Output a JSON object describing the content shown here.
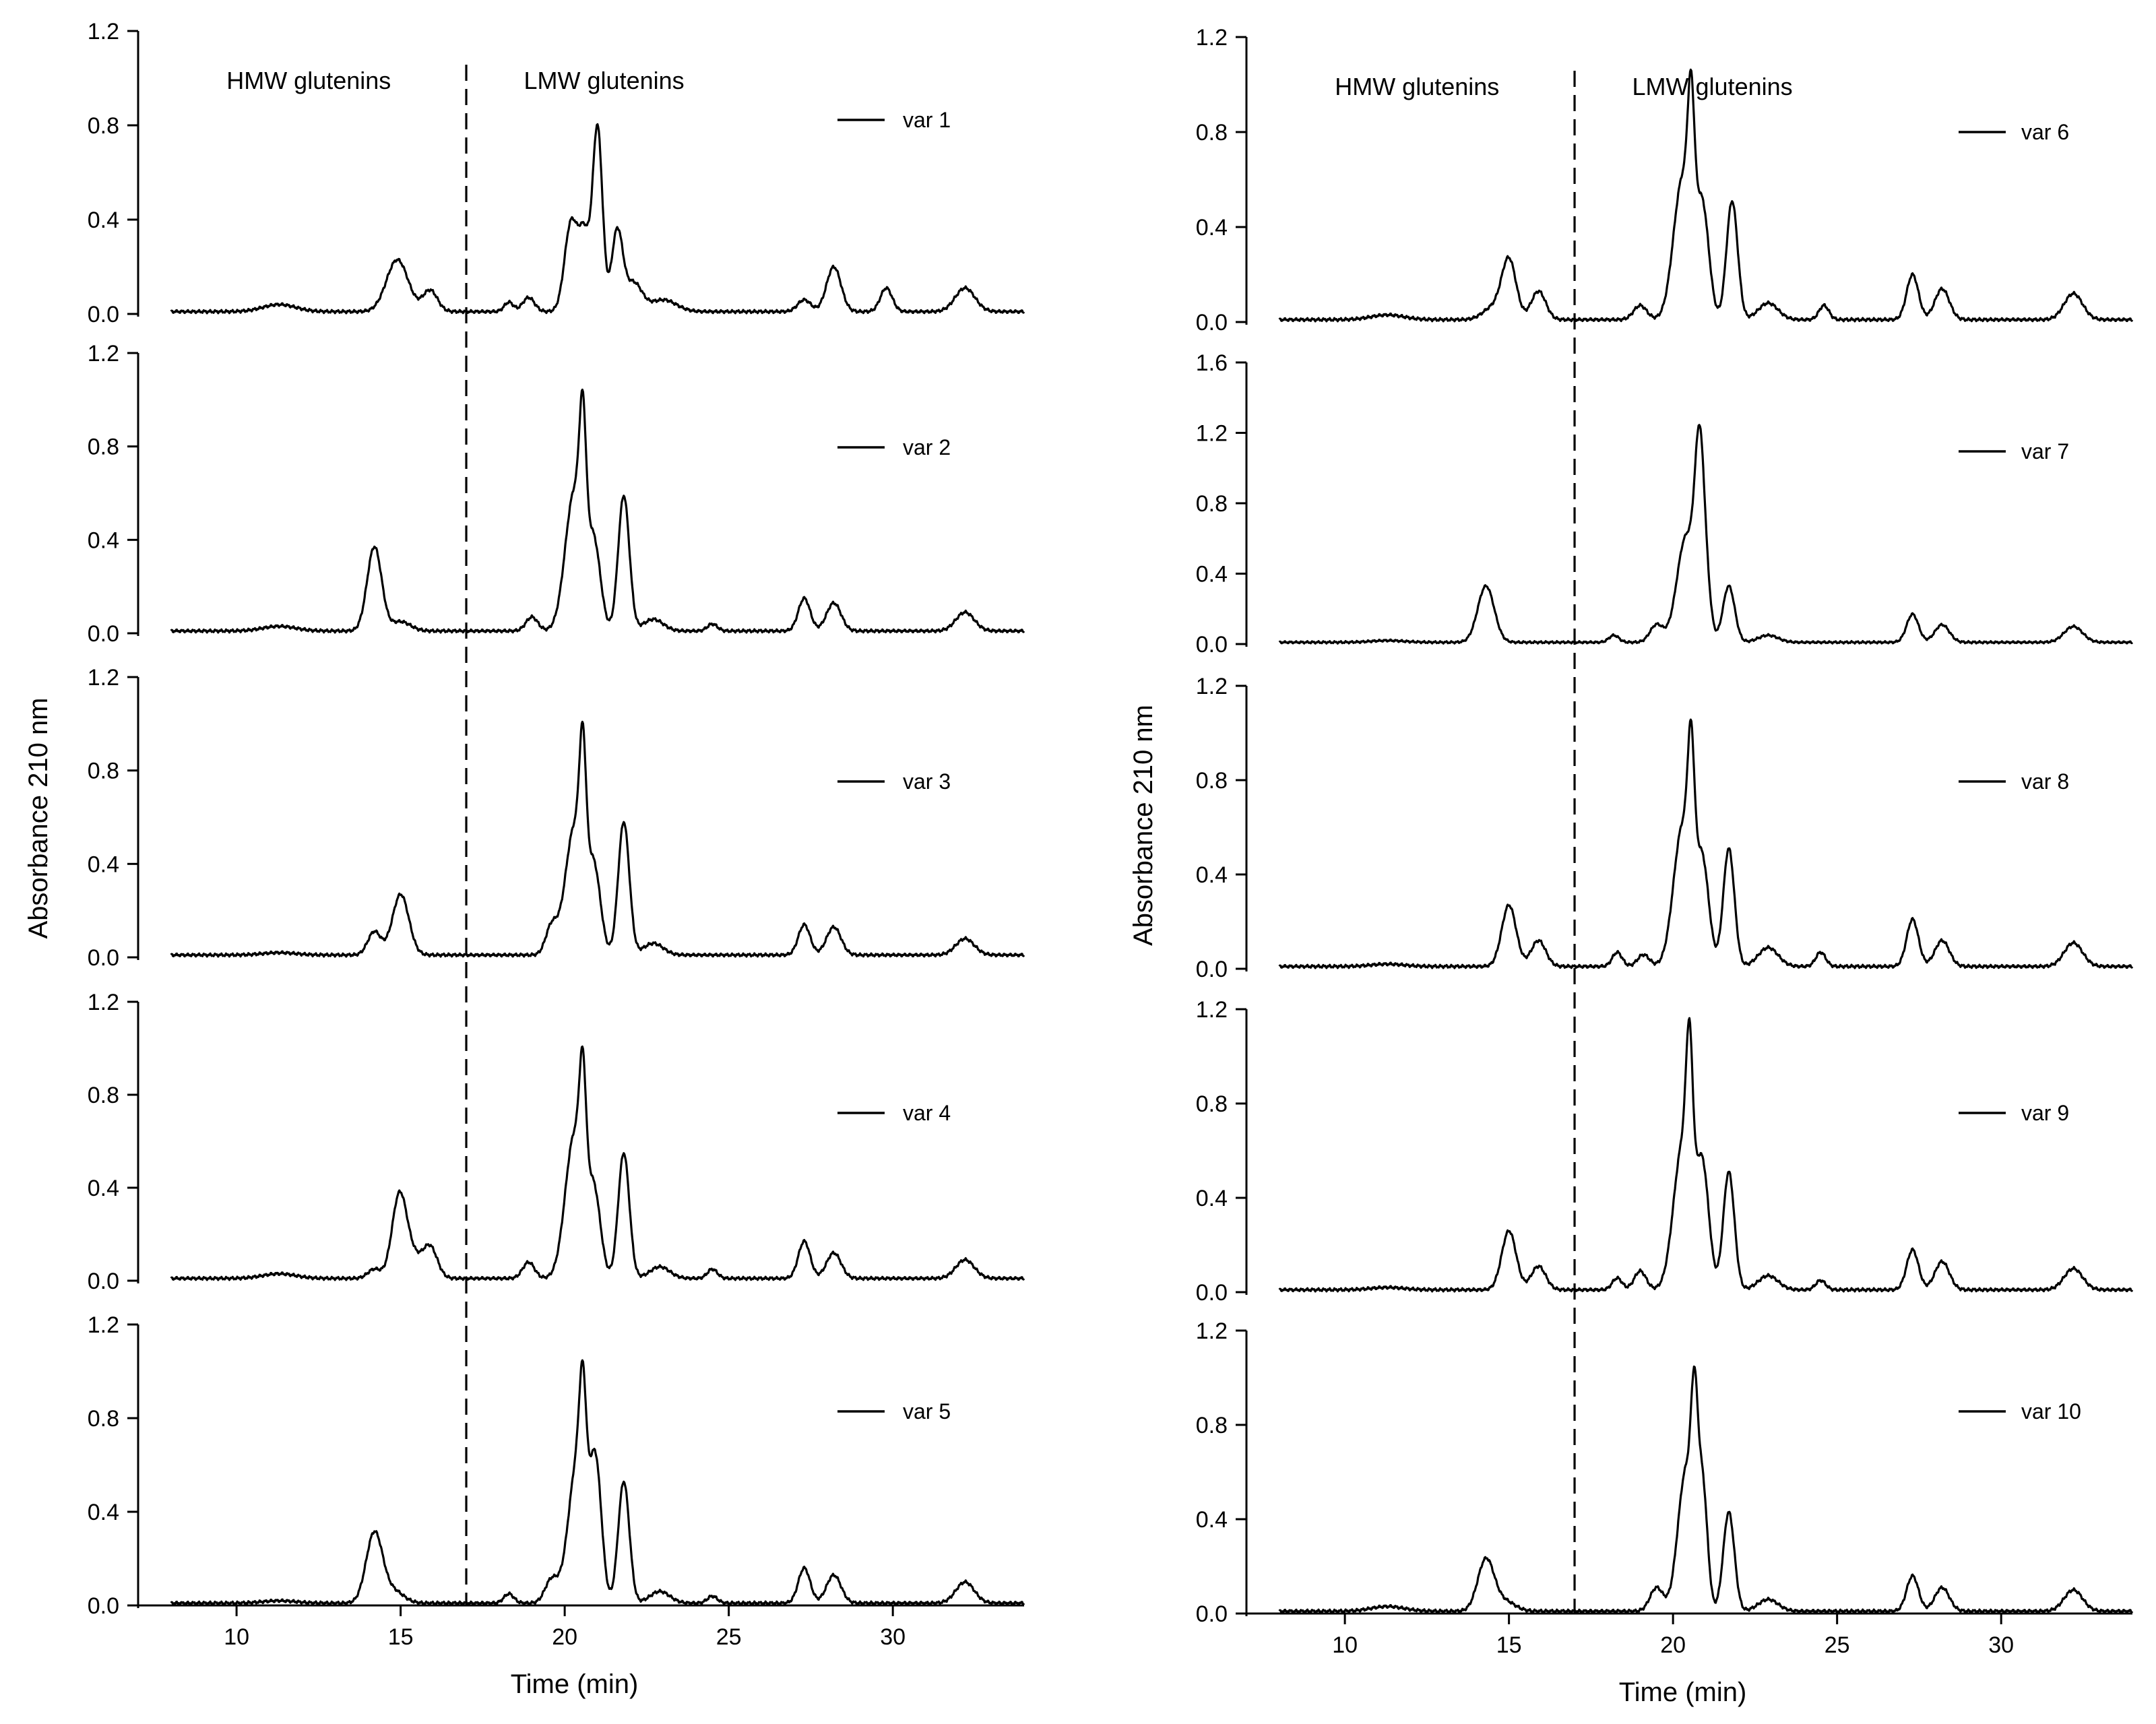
{
  "chart_data": [
    {
      "type": "line",
      "column": "left",
      "x_range": [
        7,
        34
      ],
      "x_ticks": [
        10,
        15,
        20,
        25,
        30
      ],
      "xlabel": "Time (min)",
      "ylabel": "Absorbance 210 nm",
      "divider_time": 17,
      "region_labels": [
        "HMW glutenins",
        "LMW glutenins"
      ],
      "panels": [
        {
          "legend": "var 1",
          "ylim": [
            0,
            1.2
          ],
          "y_ticks": [
            "0.0",
            "0.4",
            "0.8",
            "1.2"
          ],
          "baseline": 0.01,
          "peaks": [
            {
              "t": 11.3,
              "h": 0.03,
              "w": 0.5
            },
            {
              "t": 14.9,
              "h": 0.22,
              "w": 0.33
            },
            {
              "t": 15.9,
              "h": 0.09,
              "w": 0.22
            },
            {
              "t": 18.3,
              "h": 0.04,
              "w": 0.14
            },
            {
              "t": 18.9,
              "h": 0.06,
              "w": 0.18
            },
            {
              "t": 20.2,
              "h": 0.38,
              "w": 0.2
            },
            {
              "t": 20.6,
              "h": 0.3,
              "w": 0.16
            },
            {
              "t": 21.0,
              "h": 0.78,
              "w": 0.15
            },
            {
              "t": 21.6,
              "h": 0.34,
              "w": 0.17
            },
            {
              "t": 22.1,
              "h": 0.12,
              "w": 0.25
            },
            {
              "t": 23.0,
              "h": 0.05,
              "w": 0.4
            },
            {
              "t": 27.3,
              "h": 0.05,
              "w": 0.2
            },
            {
              "t": 28.2,
              "h": 0.19,
              "w": 0.22
            },
            {
              "t": 29.8,
              "h": 0.1,
              "w": 0.18
            },
            {
              "t": 32.2,
              "h": 0.1,
              "w": 0.3
            }
          ]
        },
        {
          "legend": "var 2",
          "ylim": [
            0,
            1.2
          ],
          "y_ticks": [
            "0.0",
            "0.4",
            "0.8",
            "1.2"
          ],
          "baseline": 0.01,
          "peaks": [
            {
              "t": 11.3,
              "h": 0.02,
              "w": 0.5
            },
            {
              "t": 14.2,
              "h": 0.36,
              "w": 0.22
            },
            {
              "t": 15.0,
              "h": 0.04,
              "w": 0.3
            },
            {
              "t": 19.0,
              "h": 0.06,
              "w": 0.18
            },
            {
              "t": 20.3,
              "h": 0.6,
              "w": 0.28
            },
            {
              "t": 20.55,
              "h": 0.55,
              "w": 0.1
            },
            {
              "t": 20.9,
              "h": 0.35,
              "w": 0.2
            },
            {
              "t": 21.8,
              "h": 0.58,
              "w": 0.17
            },
            {
              "t": 22.7,
              "h": 0.05,
              "w": 0.3
            },
            {
              "t": 24.5,
              "h": 0.03,
              "w": 0.15
            },
            {
              "t": 27.3,
              "h": 0.14,
              "w": 0.18
            },
            {
              "t": 28.2,
              "h": 0.12,
              "w": 0.22
            },
            {
              "t": 32.2,
              "h": 0.08,
              "w": 0.28
            }
          ]
        },
        {
          "legend": "var 3",
          "ylim": [
            0,
            1.2
          ],
          "y_ticks": [
            "0.0",
            "0.4",
            "0.8",
            "1.2"
          ],
          "baseline": 0.01,
          "peaks": [
            {
              "t": 11.3,
              "h": 0.01,
              "w": 0.5
            },
            {
              "t": 14.2,
              "h": 0.1,
              "w": 0.2
            },
            {
              "t": 15.0,
              "h": 0.26,
              "w": 0.25
            },
            {
              "t": 19.6,
              "h": 0.12,
              "w": 0.18
            },
            {
              "t": 20.3,
              "h": 0.55,
              "w": 0.28
            },
            {
              "t": 20.55,
              "h": 0.55,
              "w": 0.1
            },
            {
              "t": 20.9,
              "h": 0.35,
              "w": 0.2
            },
            {
              "t": 21.8,
              "h": 0.57,
              "w": 0.17
            },
            {
              "t": 22.7,
              "h": 0.05,
              "w": 0.3
            },
            {
              "t": 27.3,
              "h": 0.13,
              "w": 0.18
            },
            {
              "t": 28.2,
              "h": 0.12,
              "w": 0.22
            },
            {
              "t": 32.2,
              "h": 0.07,
              "w": 0.28
            }
          ]
        },
        {
          "legend": "var 4",
          "ylim": [
            0,
            1.2
          ],
          "y_ticks": [
            "0.0",
            "0.4",
            "0.8",
            "1.2"
          ],
          "baseline": 0.01,
          "peaks": [
            {
              "t": 11.3,
              "h": 0.02,
              "w": 0.5
            },
            {
              "t": 14.2,
              "h": 0.04,
              "w": 0.2
            },
            {
              "t": 14.95,
              "h": 0.32,
              "w": 0.22
            },
            {
              "t": 15.3,
              "h": 0.1,
              "w": 0.3
            },
            {
              "t": 15.9,
              "h": 0.13,
              "w": 0.22
            },
            {
              "t": 18.9,
              "h": 0.07,
              "w": 0.18
            },
            {
              "t": 20.3,
              "h": 0.62,
              "w": 0.28
            },
            {
              "t": 20.55,
              "h": 0.5,
              "w": 0.1
            },
            {
              "t": 20.9,
              "h": 0.35,
              "w": 0.2
            },
            {
              "t": 21.8,
              "h": 0.54,
              "w": 0.17
            },
            {
              "t": 22.9,
              "h": 0.05,
              "w": 0.3
            },
            {
              "t": 24.5,
              "h": 0.04,
              "w": 0.15
            },
            {
              "t": 27.3,
              "h": 0.16,
              "w": 0.18
            },
            {
              "t": 28.2,
              "h": 0.11,
              "w": 0.22
            },
            {
              "t": 32.2,
              "h": 0.08,
              "w": 0.28
            }
          ]
        },
        {
          "legend": "var 5",
          "ylim": [
            0,
            1.2
          ],
          "y_ticks": [
            "0.0",
            "0.4",
            "0.8",
            "1.2"
          ],
          "baseline": 0.01,
          "peaks": [
            {
              "t": 11.3,
              "h": 0.01,
              "w": 0.5
            },
            {
              "t": 14.2,
              "h": 0.3,
              "w": 0.25
            },
            {
              "t": 14.8,
              "h": 0.05,
              "w": 0.3
            },
            {
              "t": 18.3,
              "h": 0.04,
              "w": 0.15
            },
            {
              "t": 19.6,
              "h": 0.1,
              "w": 0.2
            },
            {
              "t": 20.4,
              "h": 0.62,
              "w": 0.28
            },
            {
              "t": 20.55,
              "h": 0.45,
              "w": 0.1
            },
            {
              "t": 20.95,
              "h": 0.55,
              "w": 0.18
            },
            {
              "t": 21.8,
              "h": 0.52,
              "w": 0.17
            },
            {
              "t": 22.9,
              "h": 0.05,
              "w": 0.3
            },
            {
              "t": 24.5,
              "h": 0.03,
              "w": 0.15
            },
            {
              "t": 27.3,
              "h": 0.15,
              "w": 0.18
            },
            {
              "t": 28.2,
              "h": 0.12,
              "w": 0.22
            },
            {
              "t": 32.2,
              "h": 0.09,
              "w": 0.28
            }
          ]
        }
      ]
    },
    {
      "type": "line",
      "column": "right",
      "x_range": [
        7,
        34
      ],
      "x_ticks": [
        10,
        15,
        20,
        25,
        30
      ],
      "xlabel": "Time (min)",
      "ylabel": "Absorbance 210 nm",
      "divider_time": 17,
      "region_labels": [
        "HMW glutenins",
        "LMW glutenins"
      ],
      "panels": [
        {
          "legend": "var 6",
          "ylim": [
            0,
            1.2
          ],
          "y_ticks": [
            "0.0",
            "0.4",
            "0.8",
            "1.2"
          ],
          "baseline": 0.01,
          "peaks": [
            {
              "t": 11.3,
              "h": 0.02,
              "w": 0.5
            },
            {
              "t": 14.5,
              "h": 0.05,
              "w": 0.3
            },
            {
              "t": 15.0,
              "h": 0.25,
              "w": 0.22
            },
            {
              "t": 15.9,
              "h": 0.12,
              "w": 0.22
            },
            {
              "t": 19.0,
              "h": 0.06,
              "w": 0.2
            },
            {
              "t": 20.3,
              "h": 0.6,
              "w": 0.28
            },
            {
              "t": 20.55,
              "h": 0.55,
              "w": 0.1
            },
            {
              "t": 20.9,
              "h": 0.45,
              "w": 0.2
            },
            {
              "t": 21.8,
              "h": 0.5,
              "w": 0.17
            },
            {
              "t": 22.9,
              "h": 0.07,
              "w": 0.3
            },
            {
              "t": 24.6,
              "h": 0.06,
              "w": 0.15
            },
            {
              "t": 27.3,
              "h": 0.19,
              "w": 0.18
            },
            {
              "t": 28.2,
              "h": 0.13,
              "w": 0.22
            },
            {
              "t": 32.2,
              "h": 0.11,
              "w": 0.28
            }
          ]
        },
        {
          "legend": "var 7",
          "ylim": [
            0,
            1.6
          ],
          "y_ticks": [
            "0.0",
            "0.4",
            "0.8",
            "1.2",
            "1.6"
          ],
          "baseline": 0.01,
          "peaks": [
            {
              "t": 11.3,
              "h": 0.01,
              "w": 0.5
            },
            {
              "t": 14.3,
              "h": 0.32,
              "w": 0.25
            },
            {
              "t": 18.2,
              "h": 0.04,
              "w": 0.15
            },
            {
              "t": 19.5,
              "h": 0.1,
              "w": 0.2
            },
            {
              "t": 20.4,
              "h": 0.6,
              "w": 0.28
            },
            {
              "t": 20.8,
              "h": 0.9,
              "w": 0.14
            },
            {
              "t": 21.0,
              "h": 0.3,
              "w": 0.15
            },
            {
              "t": 21.7,
              "h": 0.32,
              "w": 0.18
            },
            {
              "t": 22.9,
              "h": 0.04,
              "w": 0.3
            },
            {
              "t": 27.3,
              "h": 0.16,
              "w": 0.18
            },
            {
              "t": 28.2,
              "h": 0.1,
              "w": 0.22
            },
            {
              "t": 32.2,
              "h": 0.09,
              "w": 0.28
            }
          ]
        },
        {
          "legend": "var 8",
          "ylim": [
            0,
            1.2
          ],
          "y_ticks": [
            "0.0",
            "0.4",
            "0.8",
            "1.2"
          ],
          "baseline": 0.01,
          "peaks": [
            {
              "t": 11.3,
              "h": 0.01,
              "w": 0.5
            },
            {
              "t": 15.0,
              "h": 0.26,
              "w": 0.22
            },
            {
              "t": 15.9,
              "h": 0.11,
              "w": 0.22
            },
            {
              "t": 18.3,
              "h": 0.06,
              "w": 0.15
            },
            {
              "t": 19.1,
              "h": 0.05,
              "w": 0.18
            },
            {
              "t": 20.3,
              "h": 0.6,
              "w": 0.28
            },
            {
              "t": 20.55,
              "h": 0.55,
              "w": 0.1
            },
            {
              "t": 20.9,
              "h": 0.42,
              "w": 0.2
            },
            {
              "t": 21.7,
              "h": 0.5,
              "w": 0.17
            },
            {
              "t": 22.9,
              "h": 0.08,
              "w": 0.3
            },
            {
              "t": 24.5,
              "h": 0.06,
              "w": 0.15
            },
            {
              "t": 27.3,
              "h": 0.2,
              "w": 0.18
            },
            {
              "t": 28.2,
              "h": 0.11,
              "w": 0.22
            },
            {
              "t": 32.2,
              "h": 0.1,
              "w": 0.28
            }
          ]
        },
        {
          "legend": "var 9",
          "ylim": [
            0,
            1.2
          ],
          "y_ticks": [
            "0.0",
            "0.4",
            "0.8",
            "1.2"
          ],
          "baseline": 0.01,
          "peaks": [
            {
              "t": 11.3,
              "h": 0.01,
              "w": 0.5
            },
            {
              "t": 15.0,
              "h": 0.25,
              "w": 0.22
            },
            {
              "t": 15.9,
              "h": 0.1,
              "w": 0.22
            },
            {
              "t": 18.3,
              "h": 0.05,
              "w": 0.15
            },
            {
              "t": 19.0,
              "h": 0.08,
              "w": 0.18
            },
            {
              "t": 20.3,
              "h": 0.62,
              "w": 0.28
            },
            {
              "t": 20.5,
              "h": 0.6,
              "w": 0.1
            },
            {
              "t": 20.9,
              "h": 0.5,
              "w": 0.2
            },
            {
              "t": 21.7,
              "h": 0.5,
              "w": 0.17
            },
            {
              "t": 22.9,
              "h": 0.06,
              "w": 0.3
            },
            {
              "t": 24.5,
              "h": 0.04,
              "w": 0.15
            },
            {
              "t": 27.3,
              "h": 0.17,
              "w": 0.18
            },
            {
              "t": 28.2,
              "h": 0.12,
              "w": 0.22
            },
            {
              "t": 32.2,
              "h": 0.09,
              "w": 0.28
            }
          ]
        },
        {
          "legend": "var 10",
          "ylim": [
            0,
            1.2
          ],
          "y_ticks": [
            "0.0",
            "0.4",
            "0.8",
            "1.2"
          ],
          "baseline": 0.01,
          "peaks": [
            {
              "t": 11.3,
              "h": 0.02,
              "w": 0.5
            },
            {
              "t": 14.3,
              "h": 0.22,
              "w": 0.25
            },
            {
              "t": 14.9,
              "h": 0.04,
              "w": 0.3
            },
            {
              "t": 19.5,
              "h": 0.1,
              "w": 0.2
            },
            {
              "t": 20.4,
              "h": 0.6,
              "w": 0.25
            },
            {
              "t": 20.65,
              "h": 0.55,
              "w": 0.1
            },
            {
              "t": 20.9,
              "h": 0.5,
              "w": 0.15
            },
            {
              "t": 21.7,
              "h": 0.42,
              "w": 0.17
            },
            {
              "t": 22.9,
              "h": 0.05,
              "w": 0.3
            },
            {
              "t": 27.3,
              "h": 0.15,
              "w": 0.18
            },
            {
              "t": 28.2,
              "h": 0.1,
              "w": 0.22
            },
            {
              "t": 32.2,
              "h": 0.09,
              "w": 0.28
            }
          ]
        }
      ]
    }
  ]
}
